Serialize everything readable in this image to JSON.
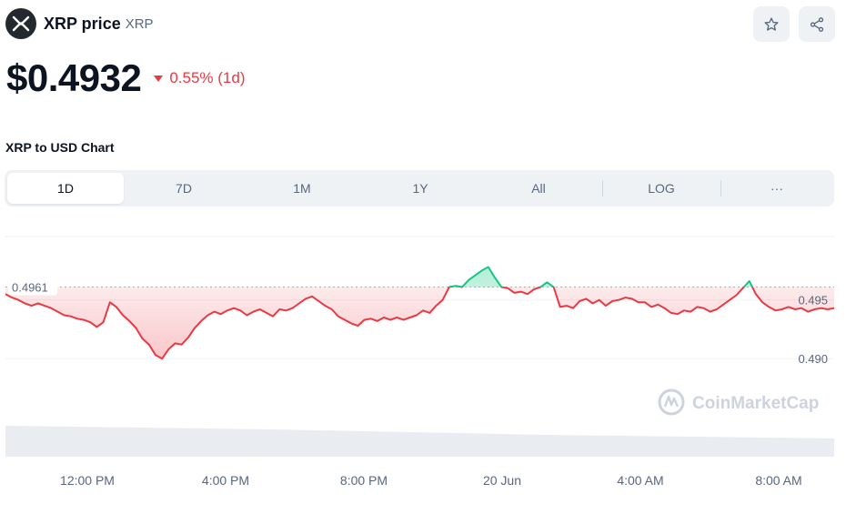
{
  "header": {
    "coin_name": "XRP price",
    "coin_symbol": "XRP",
    "logo_icon": "xrp-logo-icon",
    "actions": [
      {
        "name": "watchlist-star-button",
        "icon": "star-icon"
      },
      {
        "name": "share-button",
        "icon": "share-icon"
      }
    ]
  },
  "price": {
    "value": "$0.4932",
    "change_text": "0.55% (1d)",
    "direction": "down",
    "color_down": "#ea3943",
    "color_up": "#16c784"
  },
  "chart_section": {
    "title": "XRP to USD Chart",
    "tabs": [
      "1D",
      "7D",
      "1M",
      "1Y",
      "All"
    ],
    "active_tab": "1D",
    "log_label": "LOG",
    "more_label": "···"
  },
  "chart_data": {
    "type": "line",
    "reference_value": 0.4961,
    "reference_label": "0.4961",
    "ylim": [
      0.4849,
      0.5004
    ],
    "yticks": [
      {
        "value": 0.495,
        "label": "0.495"
      },
      {
        "value": 0.49,
        "label": "0.490"
      }
    ],
    "x_ticks": [
      "12:00 PM",
      "4:00 PM",
      "8:00 PM",
      "20 Jun",
      "4:00 AM",
      "8:00 AM"
    ],
    "watermark": "CoinMarketCap",
    "series": [
      {
        "values": [
          0.4955,
          0.4952,
          0.495,
          0.4947,
          0.4945,
          0.4947,
          0.4945,
          0.4943,
          0.494,
          0.4937,
          0.4936,
          0.4934,
          0.4933,
          0.4931,
          0.4927,
          0.4931,
          0.4948,
          0.4944,
          0.4937,
          0.4932,
          0.4926,
          0.4917,
          0.4912,
          0.4903,
          0.49,
          0.4908,
          0.4913,
          0.4912,
          0.4918,
          0.4926,
          0.4932,
          0.4937,
          0.494,
          0.4938,
          0.4941,
          0.4943,
          0.4941,
          0.4937,
          0.494,
          0.4942,
          0.4939,
          0.4936,
          0.4942,
          0.4941,
          0.4943,
          0.4947,
          0.4951,
          0.4953,
          0.4949,
          0.4945,
          0.4942,
          0.4936,
          0.4933,
          0.493,
          0.4928,
          0.4933,
          0.4934,
          0.4932,
          0.4935,
          0.4933,
          0.4935,
          0.4933,
          0.4935,
          0.4937,
          0.4941,
          0.4939,
          0.4945,
          0.495,
          0.4961,
          0.4962,
          0.4961,
          0.4967,
          0.4971,
          0.4975,
          0.4978,
          0.4969,
          0.4961,
          0.496,
          0.4956,
          0.4957,
          0.4955,
          0.4959,
          0.4961,
          0.4965,
          0.4961,
          0.4944,
          0.4945,
          0.4943,
          0.4949,
          0.4951,
          0.4947,
          0.495,
          0.4945,
          0.4949,
          0.495,
          0.4952,
          0.4951,
          0.4948,
          0.4948,
          0.4944,
          0.4946,
          0.4943,
          0.4939,
          0.4938,
          0.4941,
          0.494,
          0.4944,
          0.4943,
          0.494,
          0.4942,
          0.4946,
          0.495,
          0.4954,
          0.496,
          0.4966,
          0.4955,
          0.4948,
          0.4944,
          0.4941,
          0.4942,
          0.4944,
          0.4942,
          0.4943,
          0.494,
          0.4942,
          0.4943,
          0.4942,
          0.4943
        ]
      }
    ],
    "xlabel": "",
    "ylabel": ""
  }
}
